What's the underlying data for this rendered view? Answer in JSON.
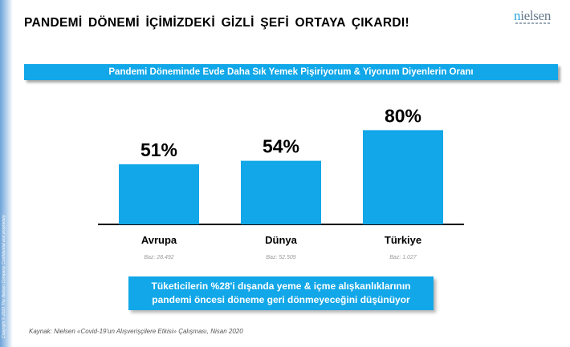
{
  "page": {
    "title": "PANDEMİ DÖNEMİ İÇİMİZDEKİ GİZLİ ŞEFİ ORTAYA ÇIKARDI!",
    "logo_first_letter": "n",
    "logo_rest": "ielsen",
    "copyright": "Copyright © 2020 The Nielsen Company. Confidential and proprietary.",
    "header_band": "Pandemi Döneminde Evde Daha Sık Yemek Pişiriyorum & Yiyorum Diyenlerin Oranı",
    "callout_line1": "Tüketicilerin %28'i dışanda yeme & içme alışkanlıklarının",
    "callout_line2": "pandemi öncesi döneme geri dönmeyeceğini düşünüyor",
    "source": "Kaynak: Nielsen «Covid-19'un Alışverişçilere Etkisi» Çalışması, Nisan 2020"
  },
  "colors": {
    "accent": "#11a7e8",
    "text": "#000000",
    "muted": "#9a9a9a"
  },
  "chart_data": {
    "type": "bar",
    "categories": [
      "Avrupa",
      "Dünya",
      "Türkiye"
    ],
    "values": [
      51,
      54,
      80
    ],
    "value_labels": [
      "51%",
      "54%",
      "80%"
    ],
    "base_labels": [
      "Baz: 28.492",
      "Baz: 52.509",
      "Baz: 1.027"
    ],
    "ylim": [
      0,
      100
    ],
    "grid": false,
    "bar_color": "#11a7e8"
  }
}
